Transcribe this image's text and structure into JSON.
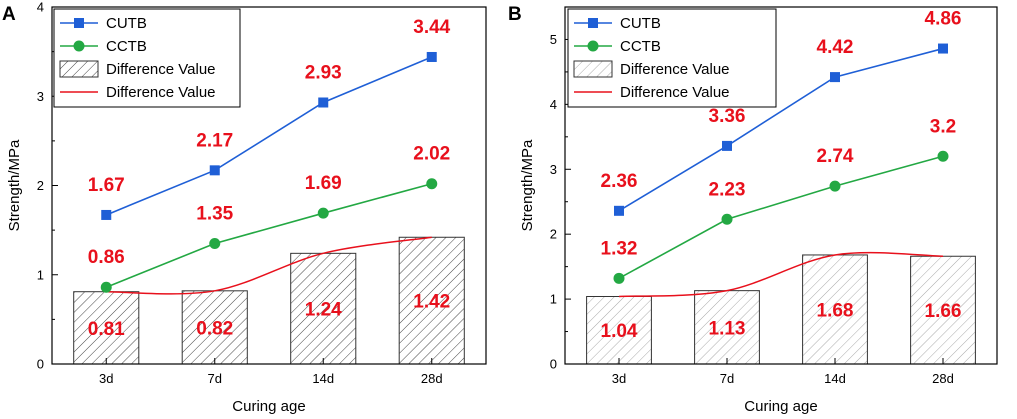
{
  "chart_data": [
    {
      "panel": "A",
      "type": "bar+line",
      "categories": [
        "3d",
        "7d",
        "14d",
        "28d"
      ],
      "xlabel": "Curing age",
      "ylabel": "Strength/MPa",
      "ylim": [
        0,
        4
      ],
      "yticks": [
        "0",
        "1",
        "2",
        "3",
        "4"
      ],
      "series": [
        {
          "name": "CUTB",
          "kind": "line-square",
          "color": "#1f5fd6",
          "values": [
            1.67,
            2.17,
            2.93,
            3.44
          ],
          "labels": [
            "1.67",
            "2.17",
            "2.93",
            "3.44"
          ]
        },
        {
          "name": "CCTB",
          "kind": "line-circle",
          "color": "#23a843",
          "values": [
            0.86,
            1.35,
            1.69,
            2.02
          ],
          "labels": [
            "0.86",
            "1.35",
            "1.69",
            "2.02"
          ]
        }
      ],
      "difference": {
        "values": [
          0.81,
          0.82,
          1.24,
          1.42
        ],
        "labels": [
          "0.81",
          "0.82",
          "1.24",
          "1.42"
        ],
        "bar_name": "Difference Value",
        "line_name": "Difference Value",
        "bar_hatch": "#444444",
        "line_color": "#e8101c"
      }
    },
    {
      "panel": "B",
      "type": "bar+line",
      "categories": [
        "3d",
        "7d",
        "14d",
        "28d"
      ],
      "xlabel": "Curing age",
      "ylabel": "Strength/MPa",
      "ylim": [
        0,
        5.5
      ],
      "yticks": [
        "0",
        "1",
        "2",
        "3",
        "4",
        "5"
      ],
      "series": [
        {
          "name": "CUTB",
          "kind": "line-square",
          "color": "#1f5fd6",
          "values": [
            2.36,
            3.36,
            4.42,
            4.86
          ],
          "labels": [
            "2.36",
            "3.36",
            "4.42",
            "4.86"
          ]
        },
        {
          "name": "CCTB",
          "kind": "line-circle",
          "color": "#23a843",
          "values": [
            1.32,
            2.23,
            2.74,
            3.2
          ],
          "labels": [
            "1.32",
            "2.23",
            "2.74",
            "3.2"
          ]
        }
      ],
      "difference": {
        "values": [
          1.04,
          1.13,
          1.68,
          1.66
        ],
        "labels": [
          "1.04",
          "1.13",
          "1.68",
          "1.66"
        ],
        "bar_name": "Difference Value",
        "line_name": "Difference Value",
        "bar_hatch": "#aaaaaa",
        "line_color": "#e8101c"
      }
    }
  ]
}
